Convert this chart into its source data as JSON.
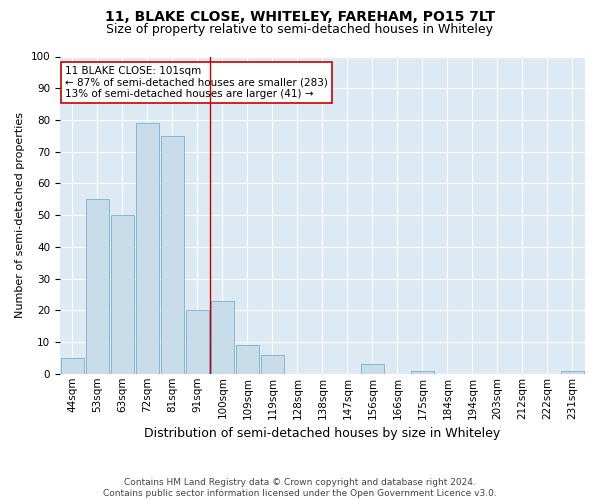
{
  "title1": "11, BLAKE CLOSE, WHITELEY, FAREHAM, PO15 7LT",
  "title2": "Size of property relative to semi-detached houses in Whiteley",
  "xlabel": "Distribution of semi-detached houses by size in Whiteley",
  "ylabel": "Number of semi-detached properties",
  "footnote": "Contains HM Land Registry data © Crown copyright and database right 2024.\nContains public sector information licensed under the Open Government Licence v3.0.",
  "categories": [
    "44sqm",
    "53sqm",
    "63sqm",
    "72sqm",
    "81sqm",
    "91sqm",
    "100sqm",
    "109sqm",
    "119sqm",
    "128sqm",
    "138sqm",
    "147sqm",
    "156sqm",
    "166sqm",
    "175sqm",
    "184sqm",
    "194sqm",
    "203sqm",
    "212sqm",
    "222sqm",
    "231sqm"
  ],
  "values": [
    5,
    55,
    50,
    79,
    75,
    20,
    23,
    9,
    6,
    0,
    0,
    0,
    3,
    0,
    1,
    0,
    0,
    0,
    0,
    0,
    1
  ],
  "bar_color": "#c8dcea",
  "bar_edge_color": "#7ab0cc",
  "highlight_index": 6,
  "highlight_color": "#cc0000",
  "annotation_line1": "11 BLAKE CLOSE: 101sqm",
  "annotation_line2": "← 87% of semi-detached houses are smaller (283)",
  "annotation_line3": "13% of semi-detached houses are larger (41) →",
  "annotation_box_color": "#ffffff",
  "annotation_box_edge": "#cc0000",
  "ylim": [
    0,
    100
  ],
  "background_color": "#ffffff",
  "plot_background": "#ddeaf4",
  "title1_fontsize": 10,
  "title2_fontsize": 9,
  "xlabel_fontsize": 9,
  "ylabel_fontsize": 8,
  "annotation_fontsize": 7.5,
  "tick_fontsize": 7.5,
  "footnote_fontsize": 6.5
}
